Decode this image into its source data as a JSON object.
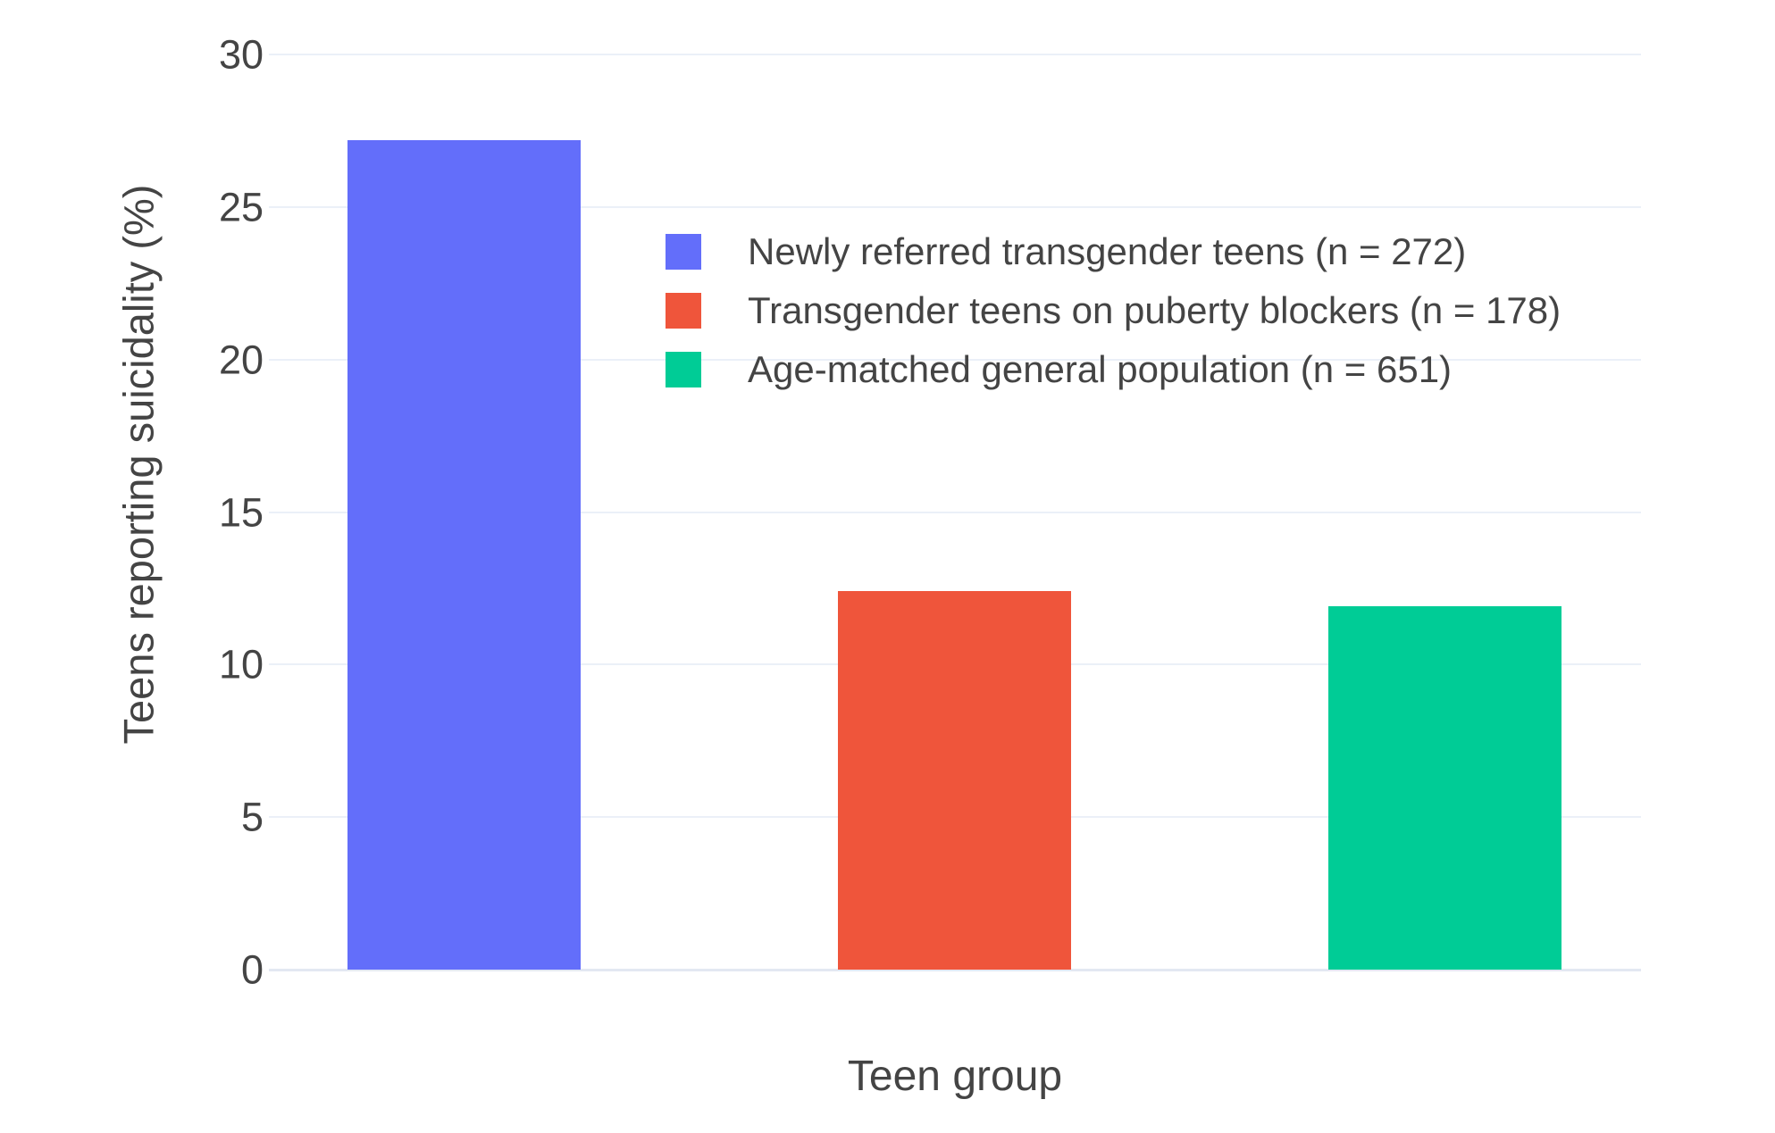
{
  "chart_data": {
    "type": "bar",
    "title": "",
    "xlabel": "Teen group",
    "ylabel": "Teens reporting suicidality (%)",
    "ylim": [
      0,
      30
    ],
    "yticks": [
      0,
      5,
      10,
      15,
      20,
      25,
      30
    ],
    "grid": true,
    "legend_position": "inside-top-center",
    "background_color": "#ffffff",
    "gridline_color": "#ebf0f8",
    "axis_text_color": "#444444",
    "categories": [
      "Newly referred transgender teens",
      "Transgender teens on puberty blockers",
      "Age-matched general population"
    ],
    "series": [
      {
        "name": "Newly referred transgender teens (n = 272)",
        "n": 272,
        "value": 27.2,
        "color": "#636efa"
      },
      {
        "name": "Transgender teens on puberty blockers (n = 178)",
        "n": 178,
        "value": 12.4,
        "color": "#ef553b"
      },
      {
        "name": "Age-matched general population (n = 651)",
        "n": 651,
        "value": 11.9,
        "color": "#00cc96"
      }
    ]
  }
}
